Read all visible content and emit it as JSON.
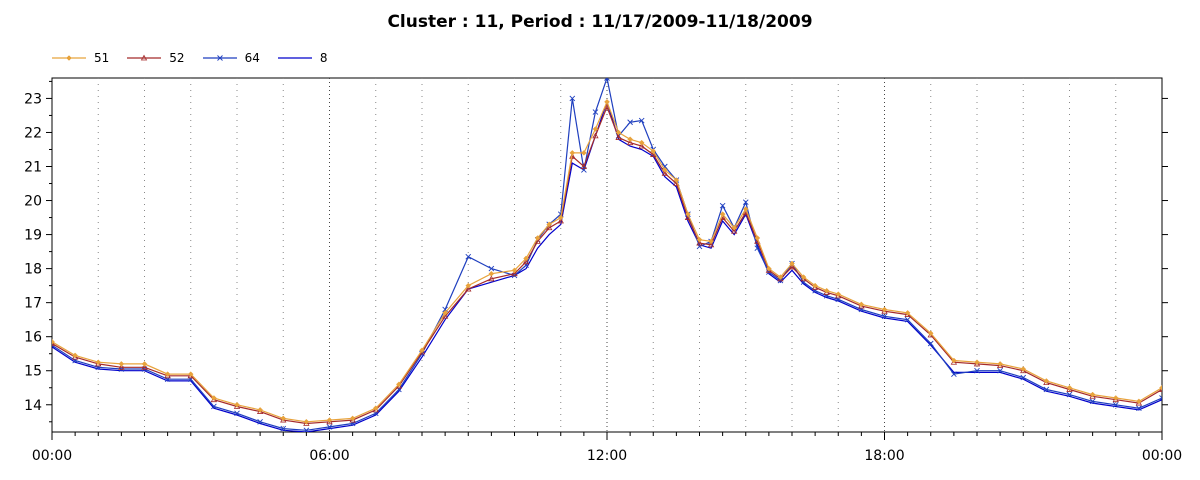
{
  "chart_data": {
    "type": "line",
    "title": "Cluster : 11, Period : 11/17/2009-11/18/2009",
    "xlabel": "",
    "ylabel": "",
    "x_ticks": [
      "00:00",
      "06:00",
      "12:00",
      "18:00",
      "00:00"
    ],
    "x_tick_hours": [
      0,
      6,
      12,
      18,
      24
    ],
    "xlim": [
      0,
      24
    ],
    "y_ticks": [
      "14",
      "15",
      "16",
      "17",
      "18",
      "19",
      "20",
      "21",
      "22",
      "23"
    ],
    "ylim": [
      13.2,
      23.6
    ],
    "grid": "dotted",
    "legend_position": "top-left",
    "series": [
      {
        "name": "51",
        "color": "#e8a33c",
        "marker": "diamond",
        "x": [
          0,
          0.5,
          1,
          1.5,
          2,
          2.5,
          3,
          3.5,
          4,
          4.5,
          5,
          5.5,
          6,
          6.5,
          7,
          7.5,
          8,
          8.5,
          9,
          9.5,
          10,
          10.25,
          10.5,
          10.75,
          11,
          11.25,
          11.5,
          11.75,
          12,
          12.25,
          12.5,
          12.75,
          13,
          13.25,
          13.5,
          13.75,
          14,
          14.25,
          14.5,
          14.75,
          15,
          15.25,
          15.5,
          15.75,
          16,
          16.25,
          16.5,
          16.75,
          17,
          17.5,
          18,
          18.5,
          19,
          19.5,
          20,
          20.5,
          21,
          21.5,
          22,
          22.5,
          23,
          23.5,
          24
        ],
        "y": [
          15.85,
          15.45,
          15.25,
          15.2,
          15.2,
          14.9,
          14.9,
          14.2,
          14.0,
          13.85,
          13.6,
          13.5,
          13.55,
          13.6,
          13.9,
          14.6,
          15.6,
          16.7,
          17.5,
          17.85,
          17.95,
          18.3,
          18.9,
          19.3,
          19.5,
          21.4,
          21.4,
          22.1,
          22.9,
          22.0,
          21.8,
          21.7,
          21.45,
          20.9,
          20.6,
          19.6,
          18.85,
          18.8,
          19.6,
          19.2,
          19.75,
          18.9,
          18.0,
          17.75,
          18.15,
          17.75,
          17.5,
          17.35,
          17.25,
          16.95,
          16.8,
          16.7,
          16.1,
          15.3,
          15.25,
          15.2,
          15.05,
          14.7,
          14.5,
          14.3,
          14.2,
          14.1,
          14.5
        ]
      },
      {
        "name": "52",
        "color": "#a52a2a",
        "marker": "triangle",
        "x": [
          0,
          0.5,
          1,
          1.5,
          2,
          2.5,
          3,
          3.5,
          4,
          4.5,
          5,
          5.5,
          6,
          6.5,
          7,
          7.5,
          8,
          8.5,
          9,
          9.5,
          10,
          10.25,
          10.5,
          10.75,
          11,
          11.25,
          11.5,
          11.75,
          12,
          12.25,
          12.5,
          12.75,
          13,
          13.25,
          13.5,
          13.75,
          14,
          14.25,
          14.5,
          14.75,
          15,
          15.25,
          15.5,
          15.75,
          16,
          16.25,
          16.5,
          16.75,
          17,
          17.5,
          18,
          18.5,
          19,
          19.5,
          20,
          20.5,
          21,
          21.5,
          22,
          22.5,
          23,
          23.5,
          24
        ],
        "y": [
          15.8,
          15.4,
          15.2,
          15.1,
          15.1,
          14.85,
          14.85,
          14.15,
          13.95,
          13.8,
          13.55,
          13.45,
          13.5,
          13.55,
          13.85,
          14.55,
          15.55,
          16.6,
          17.4,
          17.7,
          17.85,
          18.2,
          18.8,
          19.2,
          19.4,
          21.3,
          21.0,
          21.9,
          22.75,
          21.85,
          21.7,
          21.6,
          21.35,
          20.8,
          20.5,
          19.5,
          18.75,
          18.7,
          19.5,
          19.1,
          19.65,
          18.8,
          17.95,
          17.7,
          18.05,
          17.7,
          17.45,
          17.3,
          17.2,
          16.9,
          16.75,
          16.65,
          16.05,
          15.25,
          15.2,
          15.15,
          15.0,
          14.65,
          14.45,
          14.25,
          14.15,
          14.05,
          14.45
        ]
      },
      {
        "name": "64",
        "color": "#1f3fbf",
        "marker": "x",
        "x": [
          0,
          0.5,
          1,
          1.5,
          2,
          2.5,
          3,
          3.5,
          4,
          4.5,
          5,
          5.5,
          6,
          6.5,
          7,
          7.5,
          8,
          8.5,
          9,
          9.5,
          10,
          10.25,
          10.5,
          10.75,
          11,
          11.25,
          11.5,
          11.75,
          12,
          12.25,
          12.5,
          12.75,
          13,
          13.25,
          13.5,
          13.75,
          14,
          14.25,
          14.5,
          14.75,
          15,
          15.25,
          15.5,
          15.75,
          16,
          16.25,
          16.5,
          16.75,
          17,
          17.5,
          18,
          18.5,
          19,
          19.5,
          20,
          20.5,
          21,
          21.5,
          22,
          22.5,
          23,
          23.5,
          24
        ],
        "y": [
          15.75,
          15.3,
          15.1,
          15.05,
          15.05,
          14.75,
          14.75,
          13.95,
          13.75,
          13.5,
          13.3,
          13.25,
          13.35,
          13.45,
          13.75,
          14.45,
          15.5,
          16.8,
          18.35,
          18.0,
          17.8,
          18.1,
          18.85,
          19.3,
          19.6,
          23.0,
          20.9,
          22.6,
          23.6,
          21.9,
          22.3,
          22.35,
          21.5,
          21.0,
          20.6,
          19.6,
          18.65,
          18.8,
          19.85,
          19.2,
          19.95,
          18.6,
          17.9,
          17.65,
          18.15,
          17.6,
          17.35,
          17.2,
          17.1,
          16.8,
          16.6,
          16.5,
          15.8,
          14.9,
          15.0,
          15.0,
          14.8,
          14.45,
          14.3,
          14.1,
          14.0,
          13.9,
          14.2
        ]
      },
      {
        "name": "8",
        "color": "#0000cc",
        "marker": "none",
        "x": [
          0,
          0.5,
          1,
          1.5,
          2,
          2.5,
          3,
          3.5,
          4,
          4.5,
          5,
          5.5,
          6,
          6.5,
          7,
          7.5,
          8,
          8.5,
          9,
          9.5,
          10,
          10.25,
          10.5,
          10.75,
          11,
          11.25,
          11.5,
          11.75,
          12,
          12.25,
          12.5,
          12.75,
          13,
          13.25,
          13.5,
          13.75,
          14,
          14.25,
          14.5,
          14.75,
          15,
          15.25,
          15.5,
          15.75,
          16,
          16.25,
          16.5,
          16.75,
          17,
          17.5,
          18,
          18.5,
          19,
          19.5,
          20,
          20.5,
          21,
          21.5,
          22,
          22.5,
          23,
          23.5,
          24
        ],
        "y": [
          15.7,
          15.25,
          15.05,
          15.0,
          15.0,
          14.7,
          14.7,
          13.9,
          13.7,
          13.45,
          13.25,
          13.2,
          13.3,
          13.4,
          13.7,
          14.4,
          15.4,
          16.5,
          17.4,
          17.6,
          17.8,
          18.0,
          18.6,
          19.0,
          19.3,
          21.1,
          20.9,
          21.9,
          22.9,
          21.8,
          21.6,
          21.5,
          21.3,
          20.7,
          20.4,
          19.4,
          18.7,
          18.6,
          19.4,
          19.0,
          19.6,
          18.7,
          17.85,
          17.6,
          17.95,
          17.55,
          17.3,
          17.15,
          17.05,
          16.75,
          16.55,
          16.45,
          15.75,
          14.95,
          14.95,
          14.95,
          14.75,
          14.4,
          14.25,
          14.05,
          13.95,
          13.85,
          14.15
        ]
      }
    ]
  }
}
